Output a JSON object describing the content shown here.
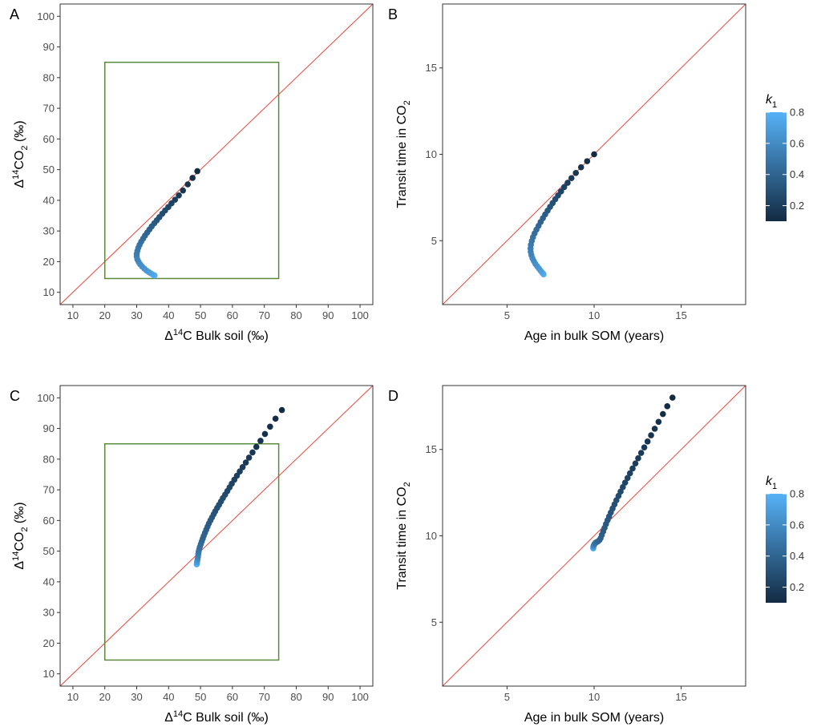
{
  "colors": {
    "identity_line": "#e8483b",
    "box": "#5a8a3a",
    "frame": "#333333",
    "point_low": "#132b43",
    "point_high": "#56b1f7"
  },
  "legend": {
    "title": "k",
    "title_subscript": "1",
    "labels": [
      "0.8",
      "0.6",
      "0.4",
      "0.2"
    ],
    "values": [
      0.8,
      0.6,
      0.4,
      0.2
    ],
    "range": [
      0.1,
      0.8
    ]
  },
  "chart_data": [
    {
      "id": "A",
      "type": "scatter",
      "panel_label": "A",
      "xlabel": {
        "pre": "Δ",
        "sup": "14",
        "post": "C Bulk soil (‰)"
      },
      "ylabel": {
        "pre": "Δ",
        "sup": "14",
        "mid": "CO",
        "sub": "2",
        "post": " (‰)"
      },
      "xlim": [
        6,
        104
      ],
      "ylim": [
        6,
        104
      ],
      "xticks": [
        10,
        20,
        30,
        40,
        50,
        60,
        70,
        80,
        90,
        100
      ],
      "yticks": [
        10,
        20,
        30,
        40,
        50,
        60,
        70,
        80,
        90,
        100
      ],
      "identity_line": true,
      "box": {
        "x": [
          20,
          74.5
        ],
        "y": [
          14.5,
          85
        ]
      },
      "series_points": [
        {
          "x": 49.0,
          "y": 49.5,
          "k": 0.1
        },
        {
          "x": 47.5,
          "y": 47.3,
          "k": 0.12
        },
        {
          "x": 46.0,
          "y": 45.2,
          "k": 0.14
        },
        {
          "x": 44.5,
          "y": 43.2,
          "k": 0.16
        },
        {
          "x": 43.2,
          "y": 41.6,
          "k": 0.18
        },
        {
          "x": 42.0,
          "y": 40.2,
          "k": 0.2
        },
        {
          "x": 40.9,
          "y": 39.0,
          "k": 0.22
        },
        {
          "x": 39.9,
          "y": 37.8,
          "k": 0.24
        },
        {
          "x": 38.9,
          "y": 36.7,
          "k": 0.26
        },
        {
          "x": 38.0,
          "y": 35.6,
          "k": 0.28
        },
        {
          "x": 37.1,
          "y": 34.5,
          "k": 0.3
        },
        {
          "x": 36.3,
          "y": 33.5,
          "k": 0.32
        },
        {
          "x": 35.5,
          "y": 32.5,
          "k": 0.34
        },
        {
          "x": 34.7,
          "y": 31.5,
          "k": 0.36
        },
        {
          "x": 34.0,
          "y": 30.5,
          "k": 0.38
        },
        {
          "x": 33.3,
          "y": 29.5,
          "k": 0.4
        },
        {
          "x": 32.6,
          "y": 28.5,
          "k": 0.42
        },
        {
          "x": 32.0,
          "y": 27.5,
          "k": 0.44
        },
        {
          "x": 31.4,
          "y": 26.5,
          "k": 0.46
        },
        {
          "x": 30.9,
          "y": 25.5,
          "k": 0.48
        },
        {
          "x": 30.5,
          "y": 24.5,
          "k": 0.5
        },
        {
          "x": 30.2,
          "y": 23.5,
          "k": 0.52
        },
        {
          "x": 30.0,
          "y": 22.5,
          "k": 0.54
        },
        {
          "x": 30.0,
          "y": 21.6,
          "k": 0.56
        },
        {
          "x": 30.2,
          "y": 20.7,
          "k": 0.58
        },
        {
          "x": 30.6,
          "y": 19.9,
          "k": 0.6
        },
        {
          "x": 31.1,
          "y": 19.1,
          "k": 0.62
        },
        {
          "x": 31.7,
          "y": 18.4,
          "k": 0.64
        },
        {
          "x": 32.4,
          "y": 17.7,
          "k": 0.66
        },
        {
          "x": 33.1,
          "y": 17.1,
          "k": 0.68
        },
        {
          "x": 33.8,
          "y": 16.6,
          "k": 0.7
        },
        {
          "x": 34.4,
          "y": 16.2,
          "k": 0.72
        },
        {
          "x": 35.0,
          "y": 15.8,
          "k": 0.75
        },
        {
          "x": 35.4,
          "y": 15.6,
          "k": 0.78
        },
        {
          "x": 35.6,
          "y": 15.5,
          "k": 0.8
        }
      ]
    },
    {
      "id": "B",
      "type": "scatter",
      "panel_label": "B",
      "xlabel": {
        "pre": "Age in bulk SOM (years)"
      },
      "ylabel": {
        "pre": "Transit time in CO",
        "sub": "2"
      },
      "xlim": [
        1.3,
        18.7
      ],
      "ylim": [
        1.3,
        18.7
      ],
      "xticks": [
        5,
        10,
        15
      ],
      "yticks": [
        5,
        10,
        15
      ],
      "identity_line": true,
      "series_points": [
        {
          "x": 10.0,
          "y": 10.0,
          "k": 0.1
        },
        {
          "x": 9.6,
          "y": 9.6,
          "k": 0.12
        },
        {
          "x": 9.25,
          "y": 9.25,
          "k": 0.14
        },
        {
          "x": 8.95,
          "y": 8.92,
          "k": 0.16
        },
        {
          "x": 8.7,
          "y": 8.62,
          "k": 0.18
        },
        {
          "x": 8.48,
          "y": 8.35,
          "k": 0.2
        },
        {
          "x": 8.28,
          "y": 8.1,
          "k": 0.22
        },
        {
          "x": 8.1,
          "y": 7.85,
          "k": 0.24
        },
        {
          "x": 7.93,
          "y": 7.62,
          "k": 0.26
        },
        {
          "x": 7.77,
          "y": 7.4,
          "k": 0.28
        },
        {
          "x": 7.62,
          "y": 7.18,
          "k": 0.3
        },
        {
          "x": 7.47,
          "y": 6.96,
          "k": 0.32
        },
        {
          "x": 7.33,
          "y": 6.74,
          "k": 0.34
        },
        {
          "x": 7.19,
          "y": 6.52,
          "k": 0.36
        },
        {
          "x": 7.06,
          "y": 6.3,
          "k": 0.38
        },
        {
          "x": 6.93,
          "y": 6.08,
          "k": 0.4
        },
        {
          "x": 6.81,
          "y": 5.86,
          "k": 0.42
        },
        {
          "x": 6.69,
          "y": 5.64,
          "k": 0.44
        },
        {
          "x": 6.58,
          "y": 5.42,
          "k": 0.46
        },
        {
          "x": 6.49,
          "y": 5.2,
          "k": 0.48
        },
        {
          "x": 6.42,
          "y": 4.98,
          "k": 0.5
        },
        {
          "x": 6.37,
          "y": 4.76,
          "k": 0.52
        },
        {
          "x": 6.35,
          "y": 4.55,
          "k": 0.54
        },
        {
          "x": 6.36,
          "y": 4.35,
          "k": 0.56
        },
        {
          "x": 6.4,
          "y": 4.16,
          "k": 0.58
        },
        {
          "x": 6.46,
          "y": 3.98,
          "k": 0.6
        },
        {
          "x": 6.54,
          "y": 3.82,
          "k": 0.62
        },
        {
          "x": 6.63,
          "y": 3.66,
          "k": 0.64
        },
        {
          "x": 6.73,
          "y": 3.52,
          "k": 0.66
        },
        {
          "x": 6.83,
          "y": 3.39,
          "k": 0.68
        },
        {
          "x": 6.92,
          "y": 3.27,
          "k": 0.7
        },
        {
          "x": 7.0,
          "y": 3.17,
          "k": 0.73
        },
        {
          "x": 7.06,
          "y": 3.1,
          "k": 0.76
        },
        {
          "x": 7.1,
          "y": 3.05,
          "k": 0.8
        }
      ]
    },
    {
      "id": "C",
      "type": "scatter",
      "panel_label": "C",
      "xlabel": {
        "pre": "Δ",
        "sup": "14",
        "post": "C Bulk soil (‰)"
      },
      "ylabel": {
        "pre": "Δ",
        "sup": "14",
        "mid": "CO",
        "sub": "2",
        "post": " (‰)"
      },
      "xlim": [
        6,
        104
      ],
      "ylim": [
        6,
        104
      ],
      "xticks": [
        10,
        20,
        30,
        40,
        50,
        60,
        70,
        80,
        90,
        100
      ],
      "yticks": [
        10,
        20,
        30,
        40,
        50,
        60,
        70,
        80,
        90,
        100
      ],
      "identity_line": true,
      "box": {
        "x": [
          20,
          74.5
        ],
        "y": [
          14.5,
          85
        ]
      },
      "series_points": [
        {
          "x": 75.5,
          "y": 96.0,
          "k": 0.1
        },
        {
          "x": 73.5,
          "y": 93.2,
          "k": 0.11
        },
        {
          "x": 71.8,
          "y": 90.6,
          "k": 0.12
        },
        {
          "x": 70.2,
          "y": 88.2,
          "k": 0.13
        },
        {
          "x": 68.8,
          "y": 86.0,
          "k": 0.14
        },
        {
          "x": 67.5,
          "y": 84.0,
          "k": 0.15
        },
        {
          "x": 66.3,
          "y": 82.2,
          "k": 0.16
        },
        {
          "x": 65.2,
          "y": 80.5,
          "k": 0.17
        },
        {
          "x": 64.2,
          "y": 78.9,
          "k": 0.18
        },
        {
          "x": 63.2,
          "y": 77.4,
          "k": 0.19
        },
        {
          "x": 62.3,
          "y": 76.0,
          "k": 0.2
        },
        {
          "x": 61.4,
          "y": 74.6,
          "k": 0.21
        },
        {
          "x": 60.6,
          "y": 73.3,
          "k": 0.22
        },
        {
          "x": 59.8,
          "y": 72.0,
          "k": 0.23
        },
        {
          "x": 59.1,
          "y": 70.8,
          "k": 0.24
        },
        {
          "x": 58.4,
          "y": 69.6,
          "k": 0.25
        },
        {
          "x": 57.7,
          "y": 68.4,
          "k": 0.26
        },
        {
          "x": 57.0,
          "y": 67.3,
          "k": 0.27
        },
        {
          "x": 56.4,
          "y": 66.2,
          "k": 0.28
        },
        {
          "x": 55.8,
          "y": 65.1,
          "k": 0.29
        },
        {
          "x": 55.2,
          "y": 64.1,
          "k": 0.3
        },
        {
          "x": 54.6,
          "y": 63.0,
          "k": 0.31
        },
        {
          "x": 54.1,
          "y": 62.0,
          "k": 0.32
        },
        {
          "x": 53.6,
          "y": 61.0,
          "k": 0.33
        },
        {
          "x": 53.1,
          "y": 60.0,
          "k": 0.34
        },
        {
          "x": 52.6,
          "y": 59.0,
          "k": 0.35
        },
        {
          "x": 52.2,
          "y": 58.0,
          "k": 0.36
        },
        {
          "x": 51.8,
          "y": 57.0,
          "k": 0.37
        },
        {
          "x": 51.4,
          "y": 56.0,
          "k": 0.38
        },
        {
          "x": 51.0,
          "y": 55.0,
          "k": 0.39
        },
        {
          "x": 50.7,
          "y": 54.1,
          "k": 0.4
        },
        {
          "x": 50.4,
          "y": 53.2,
          "k": 0.42
        },
        {
          "x": 50.1,
          "y": 52.3,
          "k": 0.44
        },
        {
          "x": 49.8,
          "y": 51.4,
          "k": 0.46
        },
        {
          "x": 49.6,
          "y": 50.6,
          "k": 0.48
        },
        {
          "x": 49.4,
          "y": 49.8,
          "k": 0.5
        },
        {
          "x": 49.3,
          "y": 49.0,
          "k": 0.53
        },
        {
          "x": 49.2,
          "y": 48.2,
          "k": 0.56
        },
        {
          "x": 49.1,
          "y": 47.5,
          "k": 0.6
        },
        {
          "x": 49.0,
          "y": 46.9,
          "k": 0.65
        },
        {
          "x": 48.9,
          "y": 46.4,
          "k": 0.7
        },
        {
          "x": 48.9,
          "y": 46.0,
          "k": 0.75
        },
        {
          "x": 48.8,
          "y": 45.7,
          "k": 0.8
        }
      ]
    },
    {
      "id": "D",
      "type": "scatter",
      "panel_label": "D",
      "xlabel": {
        "pre": "Age in bulk SOM (years)"
      },
      "ylabel": {
        "pre": "Transit time in CO",
        "sub": "2"
      },
      "xlim": [
        1.3,
        18.7
      ],
      "ylim": [
        1.3,
        18.7
      ],
      "xticks": [
        5,
        10,
        15
      ],
      "yticks": [
        5,
        10,
        15
      ],
      "identity_line": true,
      "series_points": [
        {
          "x": 14.5,
          "y": 18.0,
          "k": 0.1
        },
        {
          "x": 14.2,
          "y": 17.5,
          "k": 0.11
        },
        {
          "x": 13.95,
          "y": 17.05,
          "k": 0.12
        },
        {
          "x": 13.7,
          "y": 16.6,
          "k": 0.13
        },
        {
          "x": 13.48,
          "y": 16.2,
          "k": 0.14
        },
        {
          "x": 13.27,
          "y": 15.82,
          "k": 0.15
        },
        {
          "x": 13.07,
          "y": 15.46,
          "k": 0.16
        },
        {
          "x": 12.88,
          "y": 15.12,
          "k": 0.17
        },
        {
          "x": 12.7,
          "y": 14.8,
          "k": 0.18
        },
        {
          "x": 12.53,
          "y": 14.49,
          "k": 0.19
        },
        {
          "x": 12.37,
          "y": 14.19,
          "k": 0.2
        },
        {
          "x": 12.21,
          "y": 13.9,
          "k": 0.21
        },
        {
          "x": 12.06,
          "y": 13.62,
          "k": 0.22
        },
        {
          "x": 11.92,
          "y": 13.35,
          "k": 0.23
        },
        {
          "x": 11.78,
          "y": 13.08,
          "k": 0.24
        },
        {
          "x": 11.65,
          "y": 12.82,
          "k": 0.25
        },
        {
          "x": 11.52,
          "y": 12.56,
          "k": 0.26
        },
        {
          "x": 11.4,
          "y": 12.31,
          "k": 0.27
        },
        {
          "x": 11.28,
          "y": 12.06,
          "k": 0.28
        },
        {
          "x": 11.17,
          "y": 11.82,
          "k": 0.29
        },
        {
          "x": 11.06,
          "y": 11.58,
          "k": 0.3
        },
        {
          "x": 10.96,
          "y": 11.35,
          "k": 0.31
        },
        {
          "x": 10.86,
          "y": 11.12,
          "k": 0.32
        },
        {
          "x": 10.77,
          "y": 10.9,
          "k": 0.33
        },
        {
          "x": 10.68,
          "y": 10.68,
          "k": 0.34
        },
        {
          "x": 10.6,
          "y": 10.46,
          "k": 0.35
        },
        {
          "x": 10.52,
          "y": 10.25,
          "k": 0.36
        },
        {
          "x": 10.44,
          "y": 10.05,
          "k": 0.37
        },
        {
          "x": 10.37,
          "y": 9.86,
          "k": 0.39
        },
        {
          "x": 10.3,
          "y": 9.75,
          "k": 0.41
        },
        {
          "x": 10.22,
          "y": 9.68,
          "k": 0.43
        },
        {
          "x": 10.14,
          "y": 9.63,
          "k": 0.45
        },
        {
          "x": 10.07,
          "y": 9.59,
          "k": 0.48
        },
        {
          "x": 10.02,
          "y": 9.52,
          "k": 0.52
        },
        {
          "x": 9.98,
          "y": 9.45,
          "k": 0.58
        },
        {
          "x": 9.96,
          "y": 9.38,
          "k": 0.65
        },
        {
          "x": 9.95,
          "y": 9.32,
          "k": 0.72
        },
        {
          "x": 9.95,
          "y": 9.27,
          "k": 0.8
        }
      ]
    }
  ]
}
